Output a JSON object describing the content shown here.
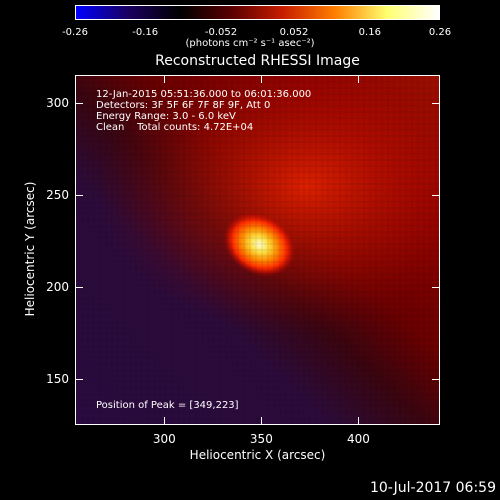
{
  "colorbar": {
    "ticks": [
      "-0.26",
      "-0.16",
      "-0.052",
      "0.052",
      "0.16",
      "0.26"
    ],
    "tick_values": [
      -0.26,
      -0.16,
      -0.052,
      0.052,
      0.16,
      0.26
    ],
    "range": [
      -0.26,
      0.26
    ],
    "units": "(photons cm⁻² s⁻¹ asec⁻²)",
    "colors": [
      "#0000ff",
      "#1a0060",
      "#000000",
      "#5a0000",
      "#c81e00",
      "#ff7f00",
      "#ffff70",
      "#ffffff"
    ]
  },
  "chart_data": {
    "type": "heatmap",
    "title": "Reconstructed RHESSI Image",
    "xlabel": "Heliocentric X (arcsec)",
    "ylabel": "Heliocentric Y (arcsec)",
    "xlim": [
      254,
      442
    ],
    "ylim": [
      125,
      315
    ],
    "xticks": [
      300,
      350,
      400
    ],
    "yticks": [
      150,
      200,
      250,
      300
    ],
    "peak": {
      "x": 349,
      "y": 223
    },
    "annotations": [
      "12-Jan-2015 05:51:36.000 to 06:01:36.000",
      "Detectors: 3F 5F 6F 7F 8F 9F, Att 0",
      "Energy Range: 3.0 - 6.0 keV",
      "Clean    Total counts: 4.72E+04"
    ],
    "peak_label": "Position of Peak = [349,223]"
  },
  "footer_date": "10-Jul-2017 06:59"
}
